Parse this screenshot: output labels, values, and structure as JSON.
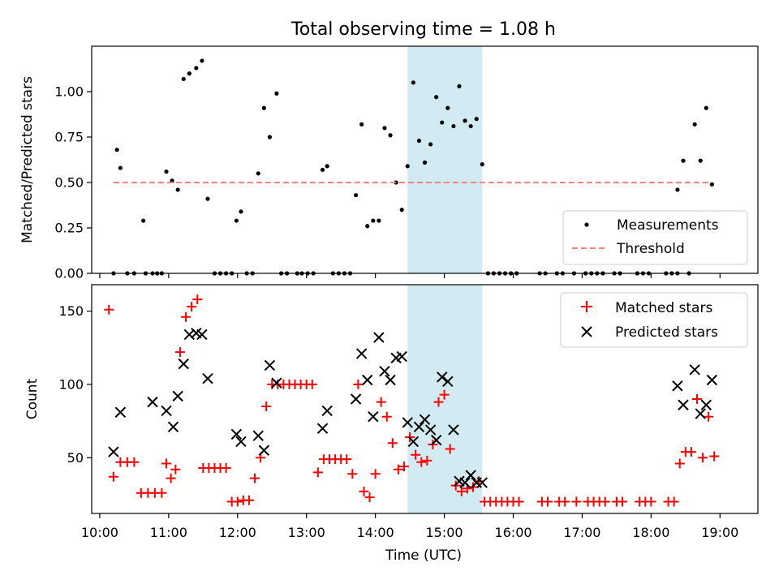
{
  "chart_data": [
    {
      "type": "scatter",
      "title": "Total observing time = 1.08 h",
      "xlabel": "",
      "ylabel": "Matched/Predicted stars",
      "xlim": [
        "09:53",
        "19:33"
      ],
      "ylim": [
        0,
        1.25
      ],
      "yticks": [
        "0.00",
        "0.25",
        "0.50",
        "0.75",
        "1.00"
      ],
      "shaded_interval": [
        "14:28",
        "15:33"
      ],
      "shade_color": "#add8e6",
      "legend_position": "lower-right",
      "series": [
        {
          "name": "Measurements",
          "color": "#000000",
          "marker": "dot",
          "points": [
            [
              "10:12",
              0
            ],
            [
              "10:15",
              0.68
            ],
            [
              "10:18",
              0.58
            ],
            [
              "10:24",
              0
            ],
            [
              "10:30",
              0
            ],
            [
              "10:38",
              0.29
            ],
            [
              "10:40",
              0
            ],
            [
              "10:46",
              0
            ],
            [
              "10:50",
              0
            ],
            [
              "10:54",
              0
            ],
            [
              "10:58",
              0.56
            ],
            [
              "11:03",
              0.51
            ],
            [
              "11:08",
              0.46
            ],
            [
              "11:13",
              1.07
            ],
            [
              "11:18",
              1.1
            ],
            [
              "11:24",
              1.13
            ],
            [
              "11:29",
              1.17
            ],
            [
              "11:34",
              0.41
            ],
            [
              "11:40",
              0
            ],
            [
              "11:45",
              0
            ],
            [
              "11:50",
              0
            ],
            [
              "11:55",
              0
            ],
            [
              "11:59",
              0.29
            ],
            [
              "12:03",
              0.34
            ],
            [
              "12:08",
              0
            ],
            [
              "12:13",
              0
            ],
            [
              "12:18",
              0.55
            ],
            [
              "12:23",
              0.91
            ],
            [
              "12:28",
              0.75
            ],
            [
              "12:34",
              0.99
            ],
            [
              "12:38",
              0
            ],
            [
              "12:43",
              0
            ],
            [
              "12:52",
              0
            ],
            [
              "12:56",
              0
            ],
            [
              "13:01",
              0
            ],
            [
              "13:06",
              0
            ],
            [
              "13:14",
              0.57
            ],
            [
              "13:18",
              0.59
            ],
            [
              "13:23",
              0
            ],
            [
              "13:28",
              0
            ],
            [
              "13:33",
              0
            ],
            [
              "13:38",
              0
            ],
            [
              "13:43",
              0.43
            ],
            [
              "13:48",
              0.82
            ],
            [
              "13:53",
              0.26
            ],
            [
              "13:58",
              0.29
            ],
            [
              "14:03",
              0.29
            ],
            [
              "14:08",
              0.8
            ],
            [
              "14:13",
              0.76
            ],
            [
              "14:18",
              0.5
            ],
            [
              "14:23",
              0.35
            ],
            [
              "14:28",
              0.59
            ],
            [
              "14:33",
              1.05
            ],
            [
              "14:38",
              0.73
            ],
            [
              "14:43",
              0.61
            ],
            [
              "14:48",
              0.71
            ],
            [
              "14:53",
              0.97
            ],
            [
              "14:58",
              0.83
            ],
            [
              "15:03",
              0.91
            ],
            [
              "15:08",
              0.81
            ],
            [
              "15:13",
              1.03
            ],
            [
              "15:18",
              0.84
            ],
            [
              "15:23",
              0.81
            ],
            [
              "15:28",
              0.85
            ],
            [
              "15:33",
              0.6
            ],
            [
              "15:38",
              0
            ],
            [
              "15:43",
              0
            ],
            [
              "15:48",
              0
            ],
            [
              "15:53",
              0
            ],
            [
              "15:58",
              0
            ],
            [
              "16:03",
              0
            ],
            [
              "16:23",
              0
            ],
            [
              "16:28",
              0
            ],
            [
              "16:38",
              0
            ],
            [
              "16:43",
              0
            ],
            [
              "16:53",
              0
            ],
            [
              "17:03",
              0
            ],
            [
              "17:08",
              0
            ],
            [
              "17:13",
              0
            ],
            [
              "17:18",
              0
            ],
            [
              "17:28",
              0
            ],
            [
              "17:33",
              0
            ],
            [
              "17:48",
              0
            ],
            [
              "17:53",
              0
            ],
            [
              "17:58",
              0
            ],
            [
              "18:13",
              0
            ],
            [
              "18:18",
              0
            ],
            [
              "18:23",
              0
            ],
            [
              "18:23",
              0.46
            ],
            [
              "18:28",
              0.62
            ],
            [
              "18:33",
              0
            ],
            [
              "18:38",
              0.82
            ],
            [
              "18:43",
              0.62
            ],
            [
              "18:48",
              0.91
            ],
            [
              "18:53",
              0.49
            ]
          ]
        },
        {
          "name": "Threshold",
          "color": "#ff7f7f",
          "style": "dashed",
          "points": [
            [
              "10:12",
              0.5
            ],
            [
              "18:53",
              0.5
            ]
          ]
        }
      ]
    },
    {
      "type": "scatter",
      "title": "",
      "xlabel": "Time (UTC)",
      "ylabel": "Count",
      "xlim": [
        "09:53",
        "19:33"
      ],
      "ylim": [
        12,
        168
      ],
      "yticks": [
        "50",
        "100",
        "150"
      ],
      "xticks": [
        "10:00",
        "11:00",
        "12:00",
        "13:00",
        "14:00",
        "15:00",
        "16:00",
        "17:00",
        "18:00",
        "19:00"
      ],
      "shaded_interval": [
        "14:28",
        "15:33"
      ],
      "shade_color": "#add8e6",
      "legend_position": "upper-right",
      "series": [
        {
          "name": "Matched stars",
          "color": "#ff0000",
          "marker": "plus",
          "points": [
            [
              "10:08",
              151
            ],
            [
              "10:12",
              37
            ],
            [
              "10:18",
              47
            ],
            [
              "10:24",
              47
            ],
            [
              "10:30",
              47
            ],
            [
              "10:36",
              26
            ],
            [
              "10:42",
              26
            ],
            [
              "10:48",
              26
            ],
            [
              "10:54",
              26
            ],
            [
              "10:58",
              46
            ],
            [
              "11:02",
              36
            ],
            [
              "11:06",
              42
            ],
            [
              "11:10",
              122
            ],
            [
              "11:15",
              146
            ],
            [
              "11:20",
              153
            ],
            [
              "11:25",
              158
            ],
            [
              "11:30",
              43
            ],
            [
              "11:35",
              43
            ],
            [
              "11:40",
              43
            ],
            [
              "11:45",
              43
            ],
            [
              "11:50",
              43
            ],
            [
              "11:55",
              20
            ],
            [
              "12:00",
              20
            ],
            [
              "12:05",
              21
            ],
            [
              "12:10",
              21
            ],
            [
              "12:15",
              36
            ],
            [
              "12:20",
              50
            ],
            [
              "12:25",
              85
            ],
            [
              "12:30",
              100
            ],
            [
              "12:35",
              100
            ],
            [
              "12:40",
              100
            ],
            [
              "12:45",
              100
            ],
            [
              "12:50",
              100
            ],
            [
              "12:55",
              100
            ],
            [
              "13:00",
              100
            ],
            [
              "13:05",
              100
            ],
            [
              "13:10",
              40
            ],
            [
              "13:15",
              49
            ],
            [
              "13:20",
              49
            ],
            [
              "13:25",
              49
            ],
            [
              "13:30",
              49
            ],
            [
              "13:35",
              49
            ],
            [
              "13:40",
              39
            ],
            [
              "13:45",
              100
            ],
            [
              "13:50",
              27
            ],
            [
              "13:55",
              23
            ],
            [
              "14:00",
              39
            ],
            [
              "14:05",
              88
            ],
            [
              "14:10",
              78
            ],
            [
              "14:15",
              60
            ],
            [
              "14:20",
              42
            ],
            [
              "14:25",
              44
            ],
            [
              "14:30",
              64
            ],
            [
              "14:35",
              52
            ],
            [
              "14:40",
              47
            ],
            [
              "14:45",
              48
            ],
            [
              "14:50",
              59
            ],
            [
              "14:55",
              88
            ],
            [
              "15:00",
              93
            ],
            [
              "15:05",
              56
            ],
            [
              "15:10",
              31
            ],
            [
              "15:15",
              27
            ],
            [
              "15:20",
              29
            ],
            [
              "15:25",
              30
            ],
            [
              "15:30",
              34
            ],
            [
              "15:35",
              20
            ],
            [
              "15:40",
              20
            ],
            [
              "15:45",
              20
            ],
            [
              "15:50",
              20
            ],
            [
              "15:55",
              20
            ],
            [
              "16:00",
              20
            ],
            [
              "16:05",
              20
            ],
            [
              "16:25",
              20
            ],
            [
              "16:30",
              20
            ],
            [
              "16:40",
              20
            ],
            [
              "16:45",
              20
            ],
            [
              "16:55",
              20
            ],
            [
              "17:05",
              20
            ],
            [
              "17:10",
              20
            ],
            [
              "17:15",
              20
            ],
            [
              "17:20",
              20
            ],
            [
              "17:30",
              20
            ],
            [
              "17:35",
              20
            ],
            [
              "17:50",
              20
            ],
            [
              "17:55",
              20
            ],
            [
              "18:00",
              20
            ],
            [
              "18:15",
              20
            ],
            [
              "18:20",
              20
            ],
            [
              "18:25",
              46
            ],
            [
              "18:30",
              54
            ],
            [
              "18:35",
              54
            ],
            [
              "18:40",
              90
            ],
            [
              "18:45",
              50
            ],
            [
              "18:50",
              78
            ],
            [
              "18:55",
              51
            ]
          ]
        },
        {
          "name": "Predicted stars",
          "color": "#000000",
          "marker": "x",
          "points": [
            [
              "10:12",
              54
            ],
            [
              "10:18",
              81
            ],
            [
              "10:46",
              88
            ],
            [
              "10:58",
              82
            ],
            [
              "11:04",
              71
            ],
            [
              "11:08",
              92
            ],
            [
              "11:13",
              114
            ],
            [
              "11:18",
              134
            ],
            [
              "11:24",
              135
            ],
            [
              "11:29",
              134
            ],
            [
              "11:34",
              104
            ],
            [
              "11:59",
              66
            ],
            [
              "12:03",
              61
            ],
            [
              "12:18",
              65
            ],
            [
              "12:23",
              55
            ],
            [
              "12:28",
              113
            ],
            [
              "12:34",
              101
            ],
            [
              "13:14",
              70
            ],
            [
              "13:18",
              82
            ],
            [
              "13:43",
              90
            ],
            [
              "13:48",
              121
            ],
            [
              "13:53",
              103
            ],
            [
              "13:58",
              78
            ],
            [
              "14:03",
              132
            ],
            [
              "14:08",
              109
            ],
            [
              "14:13",
              103
            ],
            [
              "14:18",
              118
            ],
            [
              "14:23",
              119
            ],
            [
              "14:28",
              74
            ],
            [
              "14:33",
              61
            ],
            [
              "14:38",
              71
            ],
            [
              "14:43",
              76
            ],
            [
              "14:48",
              69
            ],
            [
              "14:53",
              62
            ],
            [
              "14:58",
              105
            ],
            [
              "15:03",
              102
            ],
            [
              "15:08",
              69
            ],
            [
              "15:13",
              34
            ],
            [
              "15:18",
              33
            ],
            [
              "15:23",
              38
            ],
            [
              "15:28",
              33
            ],
            [
              "15:33",
              33
            ],
            [
              "18:23",
              99
            ],
            [
              "18:28",
              86
            ],
            [
              "18:38",
              110
            ],
            [
              "18:43",
              80
            ],
            [
              "18:48",
              86
            ],
            [
              "18:53",
              103
            ]
          ]
        }
      ]
    }
  ]
}
